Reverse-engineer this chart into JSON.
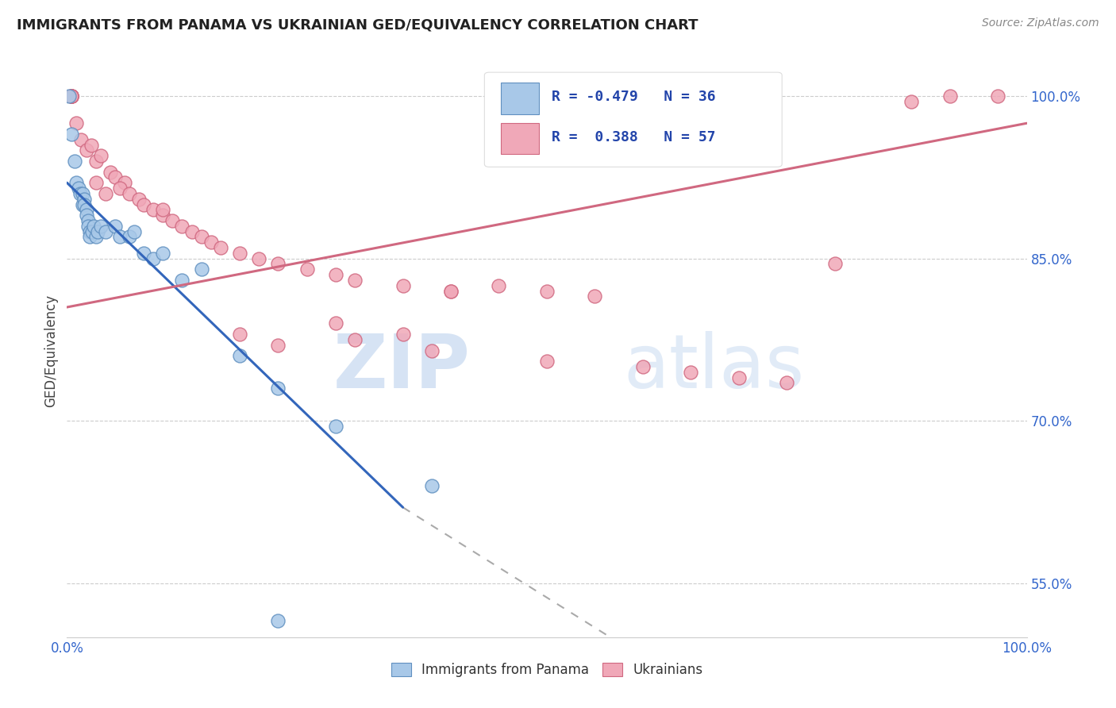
{
  "title": "IMMIGRANTS FROM PANAMA VS UKRAINIAN GED/EQUIVALENCY CORRELATION CHART",
  "source": "Source: ZipAtlas.com",
  "ylabel": "GED/Equivalency",
  "legend_label1": "Immigrants from Panama",
  "legend_label2": "Ukrainians",
  "r1": "-0.479",
  "n1": "36",
  "r2": "0.388",
  "n2": "57",
  "color_panama": "#a8c8e8",
  "color_ukraine": "#f0a8b8",
  "color_panama_edge": "#6090c0",
  "color_ukraine_edge": "#d06880",
  "color_panama_line": "#3366bb",
  "color_ukraine_line": "#d06880",
  "watermark_zip": "ZIP",
  "watermark_atlas": "atlas",
  "xlim": [
    0,
    100
  ],
  "ylim": [
    50,
    103
  ],
  "yticks": [
    55,
    70,
    85,
    100
  ],
  "panama_points": [
    [
      0.2,
      100.0
    ],
    [
      0.5,
      96.5
    ],
    [
      0.8,
      94.0
    ],
    [
      1.0,
      92.0
    ],
    [
      1.2,
      91.5
    ],
    [
      1.4,
      91.0
    ],
    [
      1.6,
      91.0
    ],
    [
      1.6,
      90.0
    ],
    [
      1.8,
      90.5
    ],
    [
      1.8,
      90.0
    ],
    [
      2.0,
      89.5
    ],
    [
      2.0,
      89.0
    ],
    [
      2.2,
      88.5
    ],
    [
      2.2,
      88.0
    ],
    [
      2.4,
      87.5
    ],
    [
      2.4,
      87.0
    ],
    [
      2.6,
      87.5
    ],
    [
      2.8,
      88.0
    ],
    [
      3.0,
      87.0
    ],
    [
      3.2,
      87.5
    ],
    [
      3.5,
      88.0
    ],
    [
      4.0,
      87.5
    ],
    [
      5.0,
      88.0
    ],
    [
      5.5,
      87.0
    ],
    [
      6.5,
      87.0
    ],
    [
      7.0,
      87.5
    ],
    [
      8.0,
      85.5
    ],
    [
      9.0,
      85.0
    ],
    [
      10.0,
      85.5
    ],
    [
      12.0,
      83.0
    ],
    [
      14.0,
      84.0
    ],
    [
      18.0,
      76.0
    ],
    [
      22.0,
      73.0
    ],
    [
      28.0,
      69.5
    ],
    [
      38.0,
      64.0
    ],
    [
      22.0,
      51.5
    ]
  ],
  "ukraine_points": [
    [
      0.5,
      100.0
    ],
    [
      0.5,
      100.0
    ],
    [
      0.5,
      100.0
    ],
    [
      0.5,
      100.0
    ],
    [
      0.5,
      100.0
    ],
    [
      0.5,
      100.0
    ],
    [
      1.0,
      97.5
    ],
    [
      1.5,
      96.0
    ],
    [
      2.0,
      95.0
    ],
    [
      2.5,
      95.5
    ],
    [
      3.0,
      94.0
    ],
    [
      3.5,
      94.5
    ],
    [
      4.5,
      93.0
    ],
    [
      5.0,
      92.5
    ],
    [
      6.0,
      92.0
    ],
    [
      3.0,
      92.0
    ],
    [
      4.0,
      91.0
    ],
    [
      5.5,
      91.5
    ],
    [
      6.5,
      91.0
    ],
    [
      7.5,
      90.5
    ],
    [
      8.0,
      90.0
    ],
    [
      9.0,
      89.5
    ],
    [
      10.0,
      89.0
    ],
    [
      10.0,
      89.5
    ],
    [
      11.0,
      88.5
    ],
    [
      12.0,
      88.0
    ],
    [
      13.0,
      87.5
    ],
    [
      14.0,
      87.0
    ],
    [
      15.0,
      86.5
    ],
    [
      16.0,
      86.0
    ],
    [
      18.0,
      85.5
    ],
    [
      20.0,
      85.0
    ],
    [
      22.0,
      84.5
    ],
    [
      25.0,
      84.0
    ],
    [
      28.0,
      83.5
    ],
    [
      30.0,
      83.0
    ],
    [
      35.0,
      82.5
    ],
    [
      40.0,
      82.0
    ],
    [
      28.0,
      79.0
    ],
    [
      35.0,
      78.0
    ],
    [
      40.0,
      82.0
    ],
    [
      45.0,
      82.5
    ],
    [
      50.0,
      82.0
    ],
    [
      55.0,
      81.5
    ],
    [
      18.0,
      78.0
    ],
    [
      22.0,
      77.0
    ],
    [
      30.0,
      77.5
    ],
    [
      38.0,
      76.5
    ],
    [
      50.0,
      75.5
    ],
    [
      60.0,
      75.0
    ],
    [
      65.0,
      74.5
    ],
    [
      70.0,
      74.0
    ],
    [
      75.0,
      73.5
    ],
    [
      80.0,
      84.5
    ],
    [
      88.0,
      99.5
    ],
    [
      92.0,
      100.0
    ],
    [
      97.0,
      100.0
    ]
  ]
}
